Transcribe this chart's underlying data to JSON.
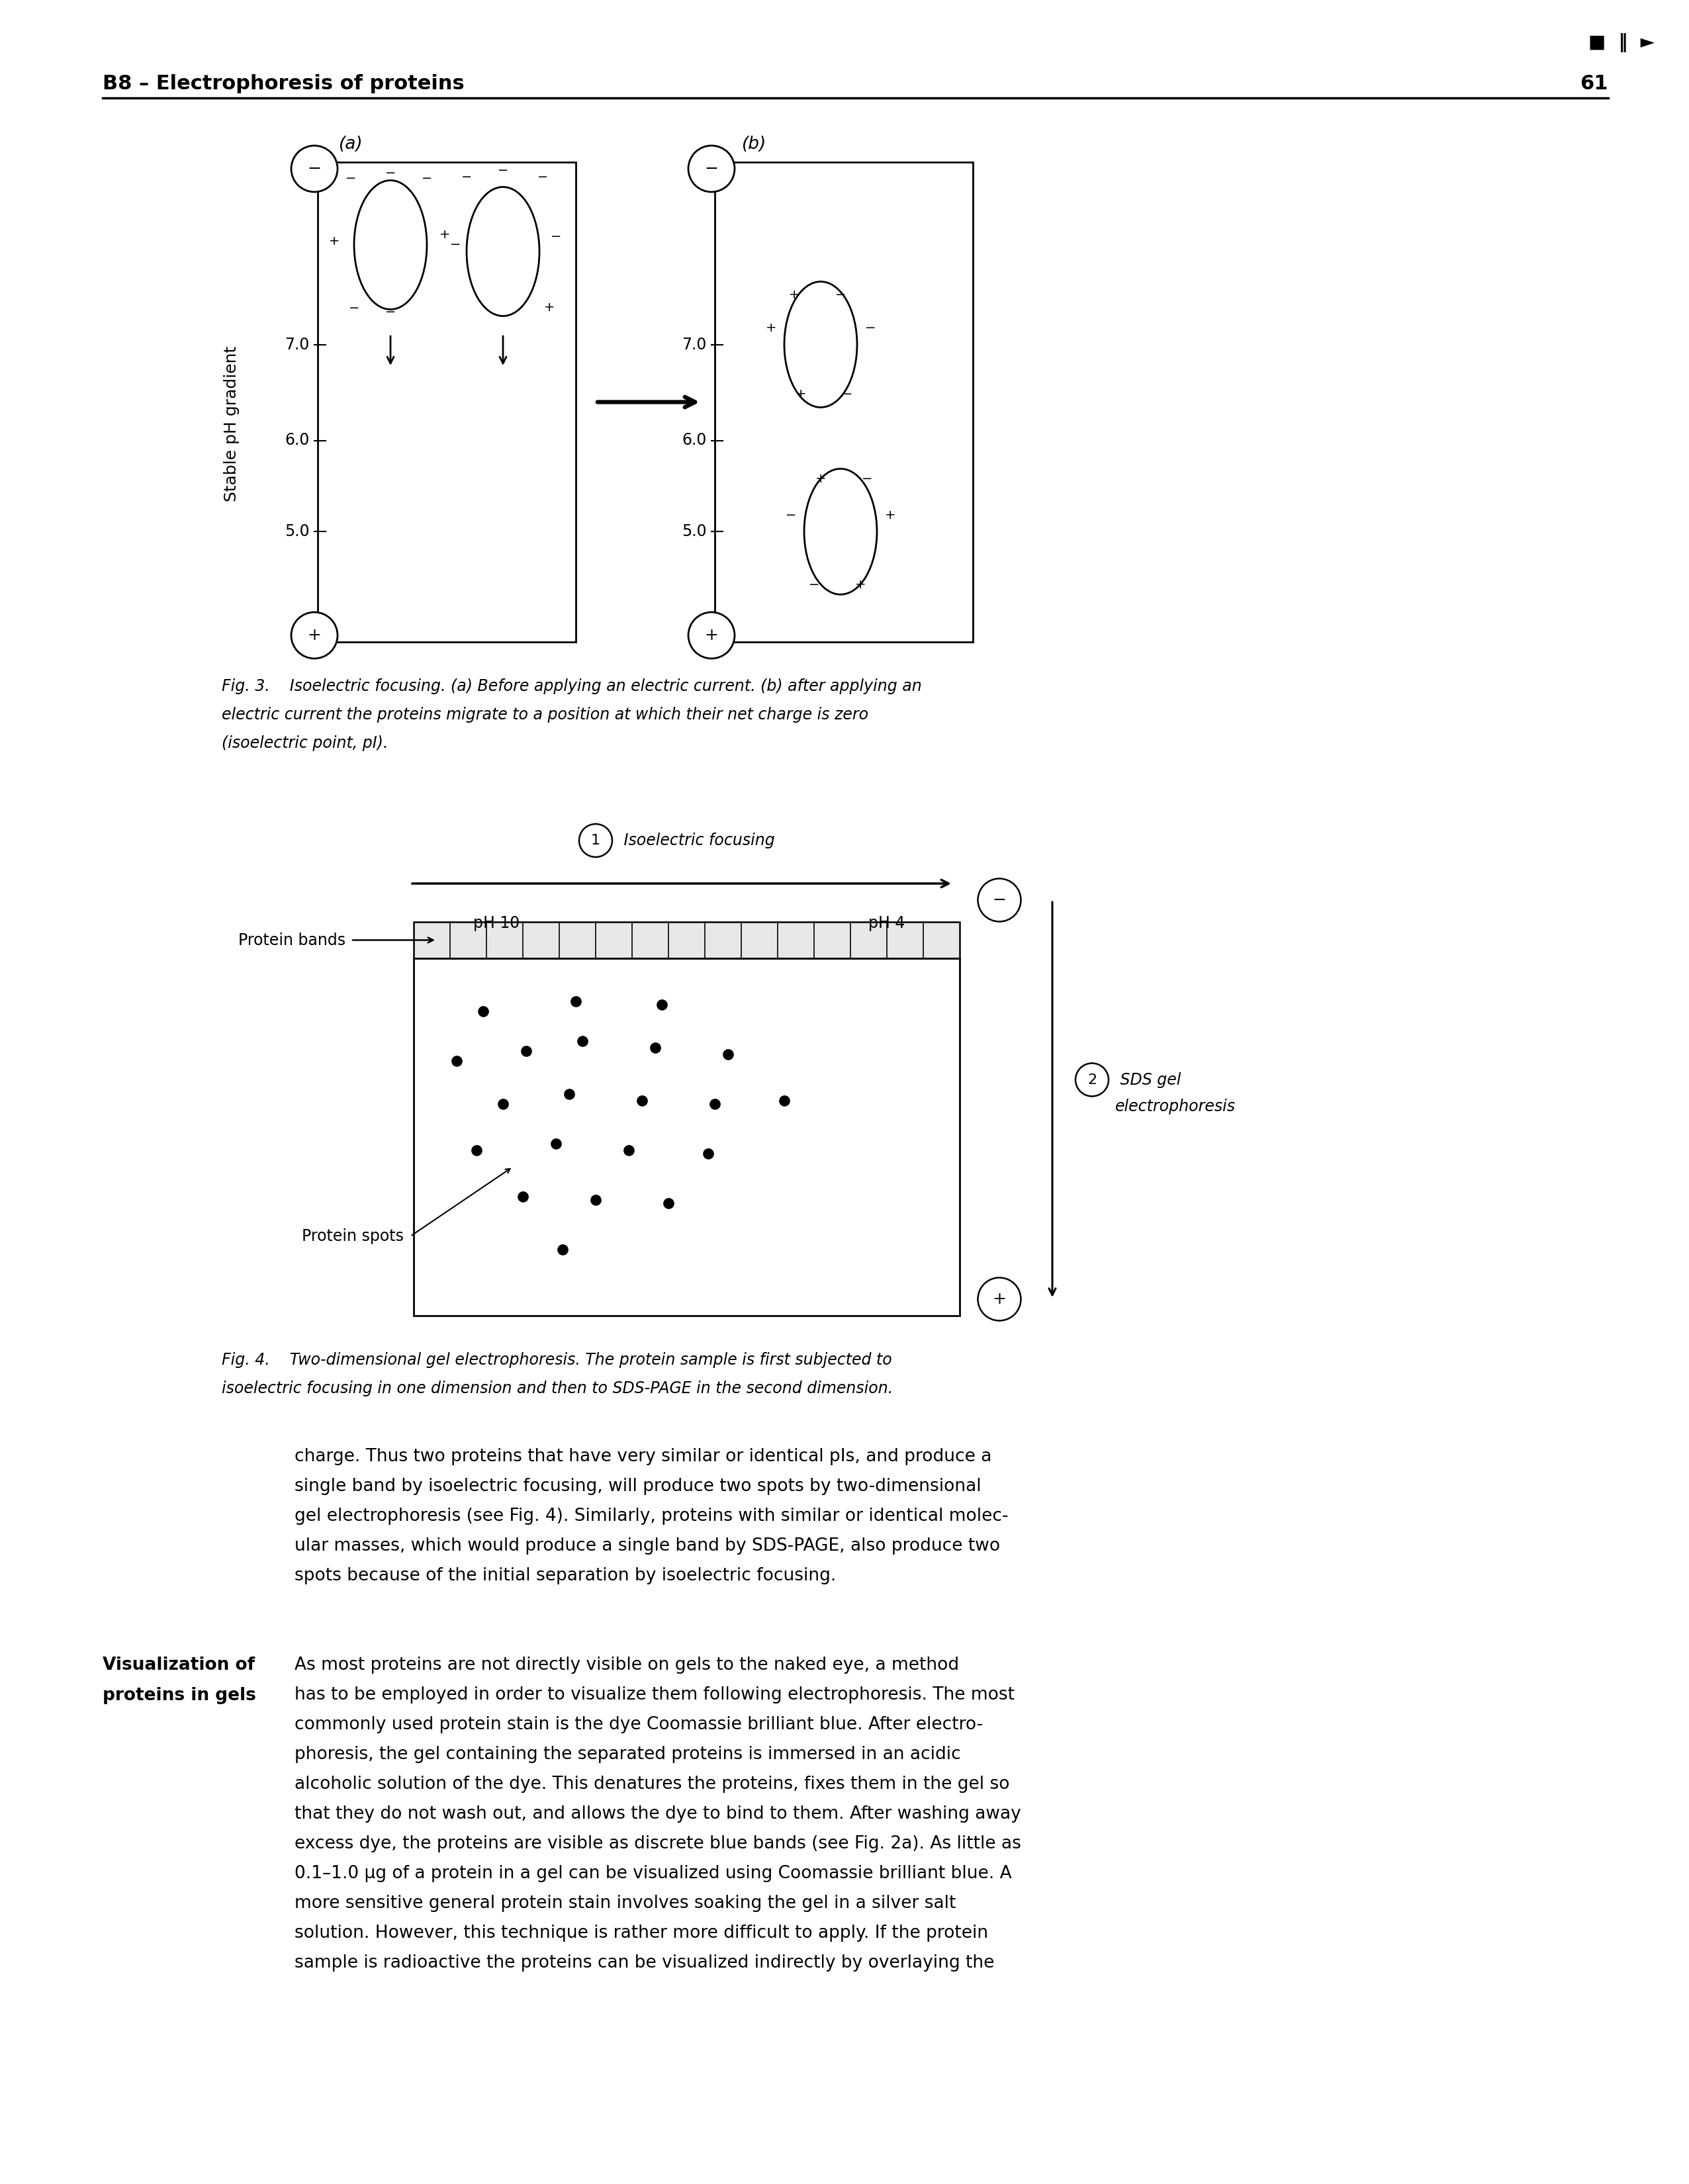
{
  "page_title": "B8 – Electrophoresis of proteins",
  "page_number": "61",
  "nav_symbols": "■  ‖  ►",
  "fig3_caption_line1": "Fig. 3.    Isoelectric focusing. (a) Before applying an electric current. (b) after applying an",
  "fig3_caption_line2": "electric current the proteins migrate to a position at which their net charge is zero",
  "fig3_caption_line3": "(isoelectric point, pI).",
  "fig4_caption_line1": "Fig. 4.    Two-dimensional gel electrophoresis. The protein sample is first subjected to",
  "fig4_caption_line2": "isoelectric focusing in one dimension and then to SDS-PAGE in the second dimension.",
  "body1_lines": [
    "charge. Thus two proteins that have very similar or identical pIs, and produce a",
    "single band by isoelectric focusing, will produce two spots by two-dimensional",
    "gel electrophoresis (see Fig. 4). Similarly, proteins with similar or identical molec-",
    "ular masses, which would produce a single band by SDS-PAGE, also produce two",
    "spots because of the initial separation by isoelectric focusing."
  ],
  "sidebar_line1": "Visualization of",
  "sidebar_line2": "proteins in gels",
  "body2_lines": [
    "As most proteins are not directly visible on gels to the naked eye, a method",
    "has to be employed in order to visualize them following electrophoresis. The most",
    "commonly used protein stain is the dye Coomassie brilliant blue. After electro-",
    "phoresis, the gel containing the separated proteins is immersed in an acidic",
    "alcoholic solution of the dye. This denatures the proteins, fixes them in the gel so",
    "that they do not wash out, and allows the dye to bind to them. After washing away",
    "excess dye, the proteins are visible as discrete blue bands (see Fig. 2a). As little as",
    "0.1–1.0 μg of a protein in a gel can be visualized using Coomassie brilliant blue. A",
    "more sensitive general protein stain involves soaking the gel in a silver salt",
    "solution. However, this technique is rather more difficult to apply. If the protein",
    "sample is radioactive the proteins can be visualized indirectly by overlaying the"
  ],
  "background_color": "#ffffff"
}
